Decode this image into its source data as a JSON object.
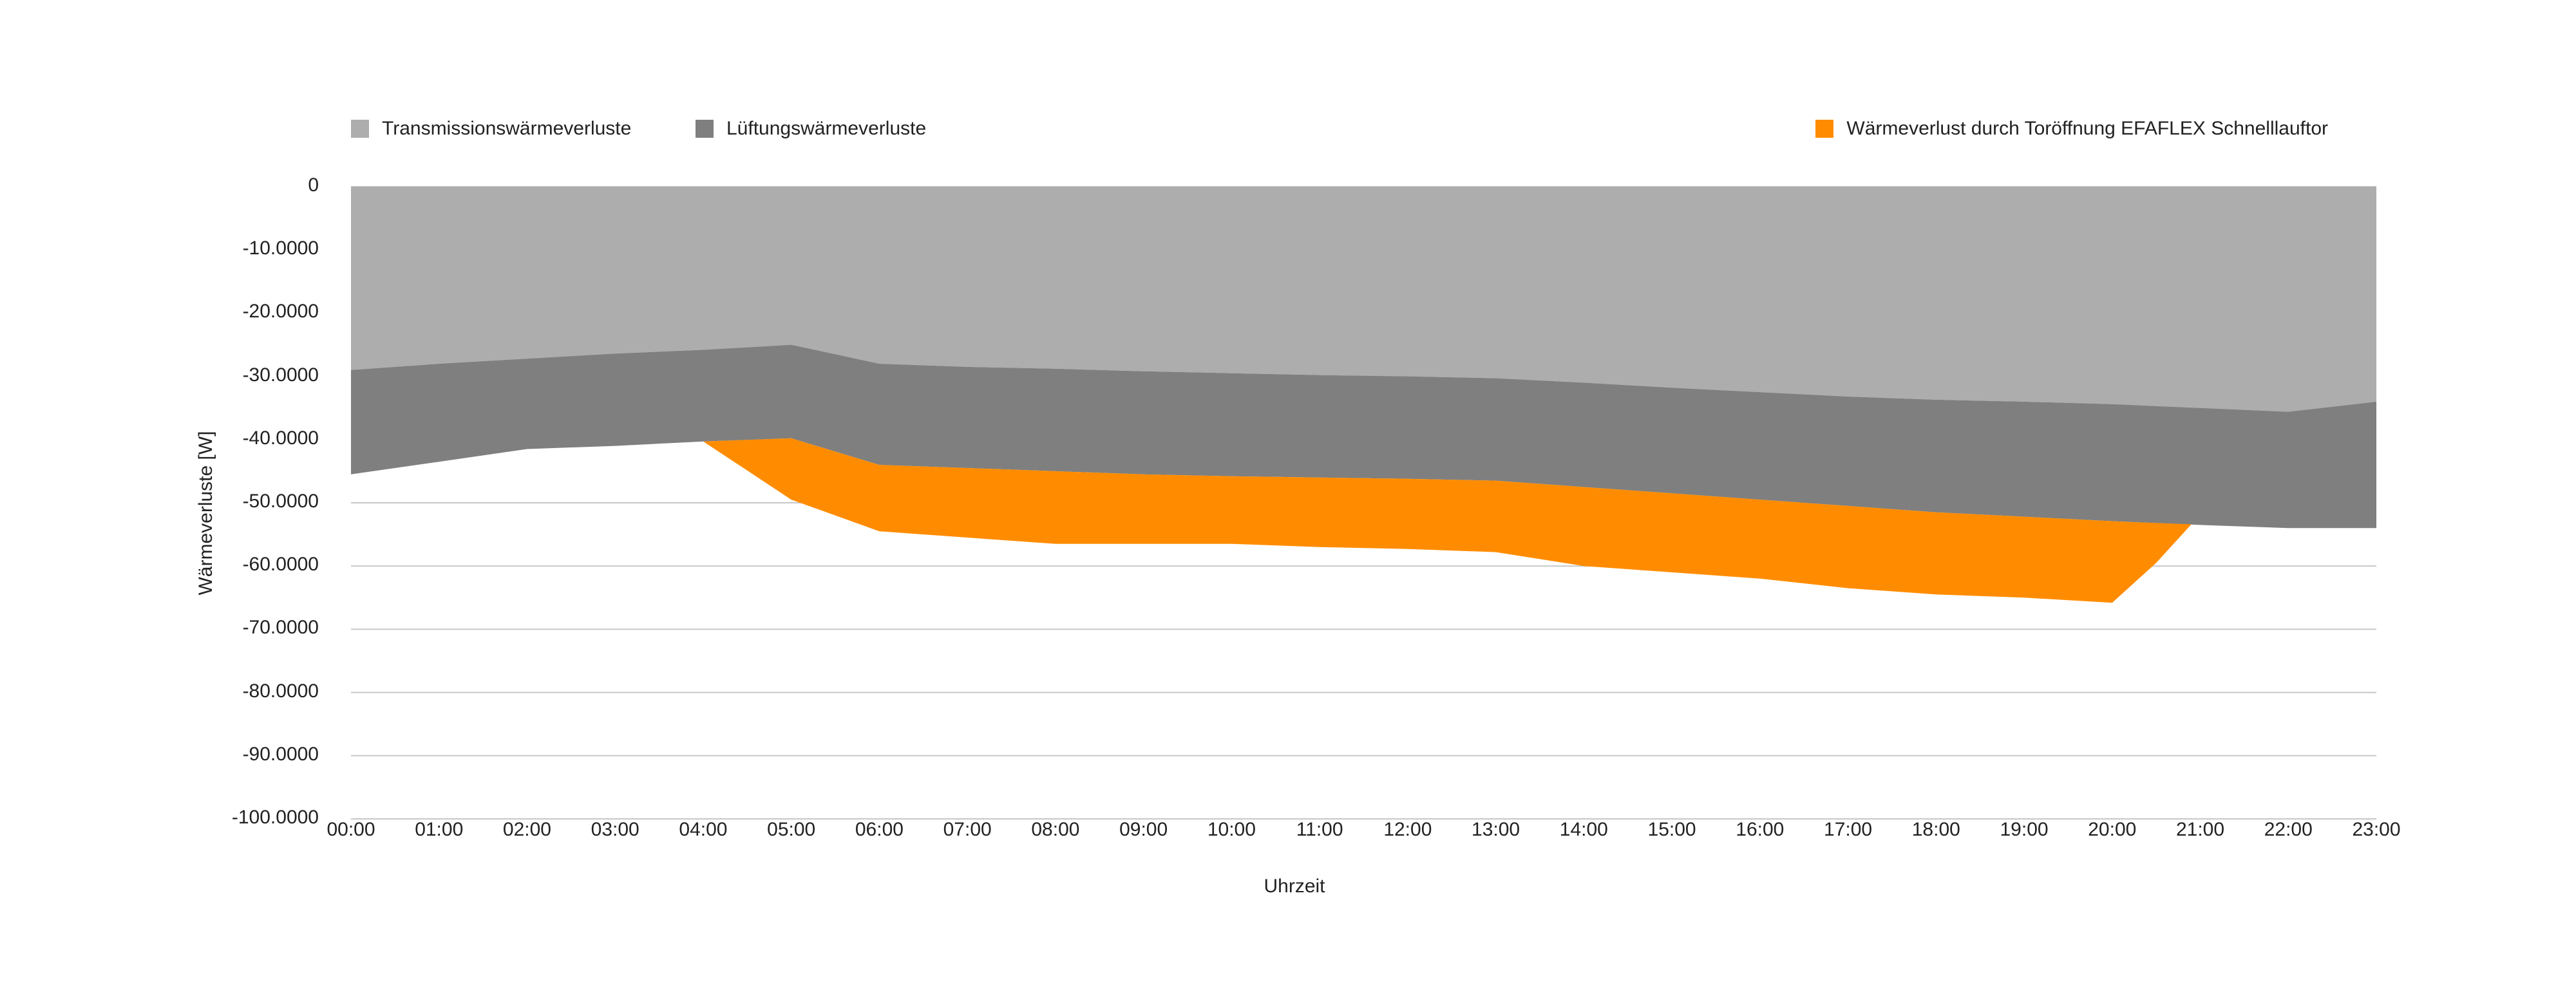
{
  "chart_data": {
    "type": "area",
    "xlabel": "Uhrzeit",
    "ylabel": "Wärmeverluste [W]",
    "x": [
      "00:00",
      "01:00",
      "02:00",
      "03:00",
      "04:00",
      "05:00",
      "06:00",
      "07:00",
      "08:00",
      "09:00",
      "10:00",
      "11:00",
      "12:00",
      "13:00",
      "14:00",
      "15:00",
      "16:00",
      "17:00",
      "18:00",
      "19:00",
      "20:00",
      "21:00",
      "22:00",
      "23:00"
    ],
    "y_ticks": [
      "0",
      "-10.0000",
      "-20.0000",
      "-30.0000",
      "-40.0000",
      "-50.0000",
      "-60.0000",
      "-70.0000",
      "-80.0000",
      "-90.0000",
      "-100.0000"
    ],
    "ylim": [
      -100000,
      0
    ],
    "grid": "horizontal",
    "legend_placement": "top",
    "series": [
      {
        "name": "Transmissionswärmeverluste",
        "color": "#adadad",
        "upper": [
          0,
          0,
          0,
          0,
          0,
          0,
          0,
          0,
          0,
          0,
          0,
          0,
          0,
          0,
          0,
          0,
          0,
          0,
          0,
          0,
          0,
          0,
          0,
          0
        ],
        "lower": [
          -29000,
          -28000,
          -27200,
          -26400,
          -25800,
          -25000,
          -28000,
          -28500,
          -28800,
          -29200,
          -29500,
          -29800,
          -30000,
          -30300,
          -31000,
          -31800,
          -32500,
          -33200,
          -33700,
          -34000,
          -34400,
          -35000,
          -35600,
          -34000
        ]
      },
      {
        "name": "Lüftungswärmeverluste",
        "color": "#7f7f7f",
        "upper": [
          -29000,
          -28000,
          -27200,
          -26400,
          -25800,
          -25000,
          -28000,
          -28500,
          -28800,
          -29200,
          -29500,
          -29800,
          -30000,
          -30300,
          -31000,
          -31800,
          -32500,
          -33200,
          -33700,
          -34000,
          -34400,
          -35000,
          -35600,
          -34000
        ],
        "lower": [
          -45500,
          -43500,
          -41500,
          -41000,
          -40300,
          -39800,
          -44000,
          -44500,
          -45000,
          -45500,
          -45800,
          -46000,
          -46200,
          -46500,
          -47500,
          -48500,
          -49500,
          -50500,
          -51500,
          -52200,
          -52900,
          -53500,
          -54000,
          -54000
        ]
      },
      {
        "name": "Wärmeverlust durch Toröffnung EFAFLEX Schnelllauftor",
        "color": "#ff8c00",
        "x_points": [
          4.0,
          5.0,
          6.0,
          7.0,
          8.0,
          9.0,
          10.0,
          11.0,
          12.0,
          13.0,
          14.0,
          15.0,
          16.0,
          17.0,
          18.0,
          19.0,
          20.0,
          20.5,
          20.9
        ],
        "upper": [
          -40300,
          -39800,
          -44000,
          -44500,
          -45000,
          -45500,
          -45800,
          -46000,
          -46200,
          -46500,
          -47500,
          -48500,
          -49500,
          -50500,
          -51500,
          -52200,
          -52900,
          -53200,
          -53400
        ],
        "lower": [
          -40300,
          -49500,
          -54500,
          -55500,
          -56500,
          -56500,
          -56500,
          -57000,
          -57300,
          -57800,
          -60000,
          -61000,
          -62000,
          -63500,
          -64500,
          -65000,
          -65800,
          -59500,
          -53400
        ]
      }
    ]
  }
}
